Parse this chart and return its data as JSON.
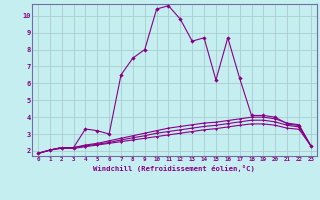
{
  "xlabel": "Windchill (Refroidissement éolien,°C)",
  "background_color": "#c5eef0",
  "line_color": "#880088",
  "grid_color": "#aacccc",
  "xlim": [
    -0.5,
    23.5
  ],
  "ylim": [
    1.7,
    10.7
  ],
  "xticks": [
    0,
    1,
    2,
    3,
    4,
    5,
    6,
    7,
    8,
    9,
    10,
    11,
    12,
    13,
    14,
    15,
    16,
    17,
    18,
    19,
    20,
    21,
    22,
    23
  ],
  "yticks": [
    2,
    3,
    4,
    5,
    6,
    7,
    8,
    9,
    10
  ],
  "series": [
    {
      "x": [
        0,
        1,
        2,
        3,
        4,
        5,
        6,
        7,
        8,
        9,
        10,
        11,
        12,
        13,
        14,
        15,
        16,
        17,
        18,
        19,
        20,
        21,
        22,
        23
      ],
      "y": [
        1.85,
        2.05,
        2.2,
        2.2,
        3.3,
        3.2,
        3.0,
        6.5,
        7.5,
        8.0,
        10.4,
        10.6,
        9.8,
        8.5,
        8.7,
        6.2,
        8.7,
        6.3,
        4.1,
        4.1,
        4.0,
        3.6,
        3.5,
        2.3
      ]
    },
    {
      "x": [
        0,
        1,
        2,
        3,
        4,
        5,
        6,
        7,
        8,
        9,
        10,
        11,
        12,
        13,
        14,
        15,
        16,
        17,
        18,
        19,
        20,
        21,
        22,
        23
      ],
      "y": [
        1.85,
        2.05,
        2.2,
        2.2,
        2.35,
        2.45,
        2.6,
        2.75,
        2.9,
        3.05,
        3.2,
        3.35,
        3.45,
        3.55,
        3.65,
        3.7,
        3.8,
        3.9,
        4.0,
        4.0,
        3.9,
        3.65,
        3.55,
        2.3
      ]
    },
    {
      "x": [
        0,
        1,
        2,
        3,
        4,
        5,
        6,
        7,
        8,
        9,
        10,
        11,
        12,
        13,
        14,
        15,
        16,
        17,
        18,
        19,
        20,
        21,
        22,
        23
      ],
      "y": [
        1.85,
        2.05,
        2.2,
        2.2,
        2.3,
        2.4,
        2.5,
        2.65,
        2.78,
        2.9,
        3.05,
        3.15,
        3.25,
        3.35,
        3.45,
        3.52,
        3.62,
        3.72,
        3.82,
        3.82,
        3.72,
        3.52,
        3.42,
        2.3
      ]
    },
    {
      "x": [
        0,
        1,
        2,
        3,
        4,
        5,
        6,
        7,
        8,
        9,
        10,
        11,
        12,
        13,
        14,
        15,
        16,
        17,
        18,
        19,
        20,
        21,
        22,
        23
      ],
      "y": [
        1.85,
        2.05,
        2.15,
        2.15,
        2.25,
        2.35,
        2.45,
        2.55,
        2.65,
        2.75,
        2.85,
        2.95,
        3.05,
        3.15,
        3.25,
        3.32,
        3.42,
        3.52,
        3.6,
        3.6,
        3.52,
        3.35,
        3.28,
        2.3
      ]
    }
  ]
}
